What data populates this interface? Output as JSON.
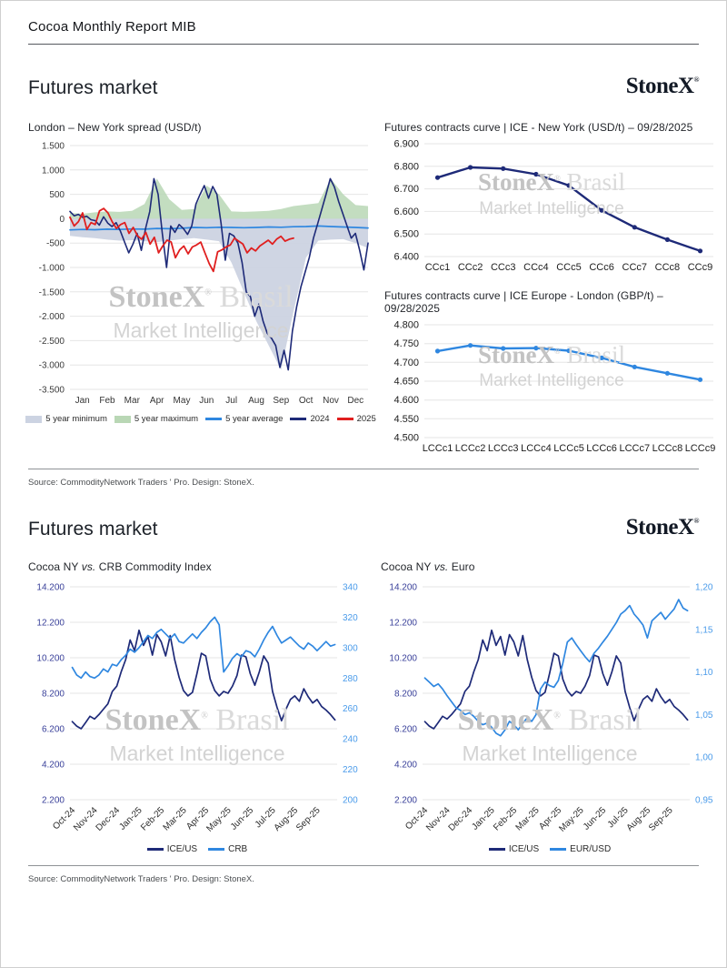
{
  "page": {
    "header_title": "Cocoa Monthly Report MIB"
  },
  "brand": {
    "name": "StoneX",
    "mark": "®"
  },
  "watermark": {
    "brand": "StoneX",
    "mark": "®",
    "region": " Brasil",
    "sub": "Market Intelligence"
  },
  "section1": {
    "title": "Futures market",
    "source": "Source: CommodityNetwork Traders ' Pro. Design: StoneX."
  },
  "section2": {
    "title": "Futures market",
    "source": "Source: CommodityNetwork Traders ' Pro. Design: StoneX."
  },
  "colors": {
    "navy": "#1e2a78",
    "red": "#e01f1f",
    "blue": "#2f87e0",
    "green_band": "#b9d7b5",
    "gray_band": "#ccd3e2",
    "axis_navy_text": "#383f99",
    "axis_blue_text": "#4a9bea"
  },
  "chart_data": [
    {
      "type": "line",
      "title": "London – New York spread (USD/t)",
      "x_range": [
        0,
        12
      ],
      "y_range": [
        -3500,
        1500
      ],
      "y_tick_values": [
        1500,
        1000,
        500,
        0,
        -500,
        -1000,
        -1500,
        -2000,
        -2500,
        -3000,
        -3500
      ],
      "y_tick_labels": [
        "1.500",
        "1.000",
        "500",
        "0",
        "-500",
        "-1.000",
        "-1.500",
        "-2.000",
        "-2.500",
        "-3.000",
        "-3.500"
      ],
      "x_tick_values": [
        0.5,
        1.5,
        2.5,
        3.5,
        4.5,
        5.5,
        6.5,
        7.5,
        8.5,
        9.5,
        10.5,
        11.5
      ],
      "x_tick_labels": [
        "Jan",
        "Feb",
        "Mar",
        "Apr",
        "May",
        "Jun",
        "Jul",
        "Aug",
        "Sep",
        "Oct",
        "Nov",
        "Dec"
      ],
      "legend": [
        {
          "label": "5 year minimum",
          "color": "#ccd3e2",
          "type": "box"
        },
        {
          "label": "5 year maximum",
          "color": "#b9d7b5",
          "type": "box"
        },
        {
          "label": "5 year average",
          "color": "#2f87e0",
          "type": "line"
        },
        {
          "label": "2024",
          "color": "#1e2a78",
          "type": "line"
        },
        {
          "label": "2025",
          "color": "#e01f1f",
          "type": "line"
        }
      ],
      "series": [
        {
          "name": "5 year minimum",
          "kind": "band",
          "baseline": 0,
          "color": "#ccd3e2",
          "opacity": 0.95,
          "x_start": 0,
          "x_end": 12,
          "values": [
            -350,
            -380,
            -400,
            -430,
            -450,
            -440,
            -460,
            -480,
            -450,
            -420,
            -400,
            -430,
            -460,
            -900,
            -1500,
            -2100,
            -2600,
            -3100,
            -1900,
            -800,
            -450,
            -430,
            -420,
            -500,
            -600
          ]
        },
        {
          "name": "5 year maximum",
          "kind": "band",
          "baseline": 0,
          "color": "#b9d7b5",
          "opacity": 0.85,
          "x_start": 0,
          "x_end": 12,
          "values": [
            120,
            100,
            130,
            150,
            140,
            160,
            300,
            820,
            400,
            180,
            200,
            680,
            500,
            150,
            140,
            150,
            160,
            200,
            260,
            290,
            320,
            820,
            500,
            280,
            260
          ]
        },
        {
          "name": "5 year average",
          "kind": "line",
          "color": "#2f87e0",
          "width": 1.7,
          "x_start": 0,
          "x_end": 12,
          "values": [
            -230,
            -220,
            -225,
            -215,
            -220,
            -210,
            -215,
            -200,
            -205,
            -195,
            -180,
            -185,
            -175,
            -180,
            -185,
            -180,
            -170,
            -175,
            -165,
            -160,
            -150,
            -160,
            -170,
            -180,
            -190
          ]
        },
        {
          "name": "2024",
          "kind": "line",
          "color": "#1e2a78",
          "width": 1.6,
          "x_start": 0,
          "x_end": 12,
          "values": [
            150,
            60,
            90,
            30,
            50,
            -20,
            -40,
            -130,
            40,
            -90,
            -160,
            -80,
            -250,
            -480,
            -700,
            -520,
            -300,
            -650,
            -200,
            150,
            820,
            500,
            -300,
            -1000,
            -150,
            -280,
            -120,
            -200,
            -320,
            -150,
            300,
            500,
            680,
            420,
            660,
            500,
            -100,
            -850,
            -300,
            -350,
            -500,
            -900,
            -1500,
            -1600,
            -2000,
            -1750,
            -2100,
            -2350,
            -2450,
            -2600,
            -3050,
            -2700,
            -3100,
            -2300,
            -1800,
            -1400,
            -1100,
            -800,
            -400,
            -100,
            200,
            500,
            820,
            650,
            350,
            100,
            -150,
            -400,
            -300,
            -650,
            -1050,
            -500
          ]
        },
        {
          "name": "2025",
          "kind": "line",
          "color": "#e01f1f",
          "width": 1.8,
          "x_start": 0,
          "x_end": 9.0,
          "values": [
            30,
            -150,
            -60,
            120,
            -220,
            -80,
            -120,
            160,
            210,
            120,
            -60,
            -200,
            -120,
            -80,
            -300,
            -180,
            -350,
            -420,
            -280,
            -520,
            -380,
            -700,
            -560,
            -440,
            -480,
            -800,
            -640,
            -560,
            -720,
            -580,
            -540,
            -480,
            -700,
            -920,
            -1080,
            -680,
            -640,
            -580,
            -540,
            -400,
            -460,
            -520,
            -700,
            -600,
            -660,
            -560,
            -500,
            -440,
            -520,
            -420,
            -360,
            -460,
            -420,
            -400
          ]
        }
      ]
    },
    {
      "type": "line",
      "title": "Futures contracts curve | ICE - New York (USD/t) – 09/28/2025",
      "x_range": [
        -0.4,
        8.4
      ],
      "y_range": [
        6400,
        6900
      ],
      "y_tick_values": [
        6900,
        6800,
        6700,
        6600,
        6500,
        6400
      ],
      "y_tick_labels": [
        "6.900",
        "6.800",
        "6.700",
        "6.600",
        "6.500",
        "6.400"
      ],
      "x_tick_values": [
        0,
        1,
        2,
        3,
        4,
        5,
        6,
        7,
        8
      ],
      "x_tick_labels": [
        "CCc1",
        "CCc2",
        "CCc3",
        "CCc4",
        "CCc5",
        "CCc6",
        "CCc7",
        "CCc8",
        "CCc9"
      ],
      "series": [
        {
          "name": "NY futures curve",
          "kind": "line",
          "color": "#1e2a78",
          "width": 2.4,
          "markers": true,
          "x_start": 0,
          "x_end": 8,
          "values": [
            6750,
            6795,
            6790,
            6765,
            6715,
            6605,
            6530,
            6475,
            6425
          ]
        }
      ]
    },
    {
      "type": "line",
      "title": "Futures contracts curve | ICE Europe - London (GBP/t) – 09/28/2025",
      "x_range": [
        -0.4,
        8.4
      ],
      "y_range": [
        4500,
        4800
      ],
      "y_tick_values": [
        4800,
        4750,
        4700,
        4650,
        4600,
        4550,
        4500
      ],
      "y_tick_labels": [
        "4.800",
        "4.750",
        "4.700",
        "4.650",
        "4.600",
        "4.550",
        "4.500"
      ],
      "x_tick_values": [
        0,
        1,
        2,
        3,
        4,
        5,
        6,
        7,
        8
      ],
      "x_tick_labels": [
        "LCCc1",
        "LCCc2",
        "LCCc3",
        "LCCc4",
        "LCCc5",
        "LCCc6",
        "LCCc7",
        "LCCc8",
        "LCCc9"
      ],
      "series": [
        {
          "name": "London futures curve",
          "kind": "line",
          "color": "#2f87e0",
          "width": 2.4,
          "markers": true,
          "x_start": 0,
          "x_end": 8,
          "values": [
            4730,
            4745,
            4737,
            4738,
            4731,
            4712,
            4688,
            4671,
            4654
          ]
        }
      ]
    },
    {
      "type": "line",
      "title_parts": {
        "a": "Cocoa NY ",
        "vs": "vs.",
        "b": " CRB Commodity Index"
      },
      "x_range": [
        0,
        12
      ],
      "y_range": [
        2200,
        14200
      ],
      "y2_range": [
        200,
        340
      ],
      "y_tick_values": [
        14200,
        12200,
        10200,
        8200,
        6200,
        4200,
        2200
      ],
      "y_tick_labels": [
        "14.200",
        "12.200",
        "10.200",
        "8.200",
        "6.200",
        "4.200",
        "2.200"
      ],
      "y2_tick_values": [
        340,
        320,
        300,
        280,
        260,
        240,
        220,
        200
      ],
      "y2_tick_labels": [
        "340",
        "320",
        "300",
        "280",
        "260",
        "240",
        "220",
        "200"
      ],
      "x_tick_values": [
        0.25,
        1.25,
        2.25,
        3.25,
        4.25,
        5.25,
        6.25,
        7.25,
        8.25,
        9.25,
        10.25,
        11.25
      ],
      "x_tick_labels": [
        "Oct-24",
        "Nov-24",
        "Dec-24",
        "Jan-25",
        "Feb-25",
        "Mar-25",
        "Apr-25",
        "May-25",
        "Jun-25",
        "Jul-25",
        "Aug-25",
        "Sep-25"
      ],
      "legend": [
        {
          "label": "ICE/US",
          "color": "#1e2a78",
          "type": "line"
        },
        {
          "label": "CRB",
          "color": "#2f87e0",
          "type": "line"
        }
      ],
      "series": [
        {
          "name": "ICE/US",
          "kind": "line",
          "color": "#1e2a78",
          "width": 1.7,
          "x_start": 0.1,
          "x_end": 11.9,
          "values": [
            6600,
            6350,
            6200,
            6550,
            6900,
            6750,
            7000,
            7300,
            7600,
            8300,
            8600,
            9400,
            10100,
            11200,
            10600,
            11750,
            10900,
            11400,
            10350,
            11500,
            11100,
            10300,
            11450,
            10100,
            9100,
            8350,
            8050,
            8250,
            9300,
            10450,
            10300,
            9000,
            8350,
            8050,
            8300,
            8200,
            8600,
            9200,
            10350,
            10250,
            9300,
            8650,
            9400,
            10300,
            9900,
            8300,
            7400,
            6650,
            7300,
            7850,
            8050,
            7750,
            8450,
            8000,
            7650,
            7850,
            7450,
            7250,
            7000,
            6700
          ]
        },
        {
          "name": "CRB",
          "kind": "line",
          "color": "#2f87e0",
          "width": 1.7,
          "axis": "y2",
          "x_start": 0.1,
          "x_end": 11.9,
          "values": [
            287,
            282,
            280,
            284,
            281,
            280,
            282,
            286,
            284,
            289,
            288,
            292,
            295,
            299,
            297,
            300,
            304,
            308,
            306,
            310,
            312,
            309,
            306,
            309,
            304,
            303,
            306,
            309,
            306,
            310,
            313,
            317,
            320,
            315,
            284,
            288,
            293,
            296,
            294,
            298,
            297,
            294,
            299,
            305,
            310,
            314,
            308,
            303,
            305,
            307,
            304,
            301,
            299,
            303,
            301,
            298,
            301,
            304,
            301,
            302
          ]
        }
      ]
    },
    {
      "type": "line",
      "title_parts": {
        "a": "Cocoa NY ",
        "vs": "vs.",
        "b": " Euro"
      },
      "x_range": [
        0,
        12
      ],
      "y_range": [
        2200,
        14200
      ],
      "y2_range": [
        0.95,
        1.2
      ],
      "y_tick_values": [
        14200,
        12200,
        10200,
        8200,
        6200,
        4200,
        2200
      ],
      "y_tick_labels": [
        "14.200",
        "12.200",
        "10.200",
        "8.200",
        "6.200",
        "4.200",
        "2.200"
      ],
      "y2_tick_values": [
        1.2,
        1.15,
        1.1,
        1.05,
        1.0,
        0.95
      ],
      "y2_tick_labels": [
        "1,20",
        "1,15",
        "1,10",
        "1,05",
        "1,00",
        "0,95"
      ],
      "x_tick_values": [
        0.25,
        1.25,
        2.25,
        3.25,
        4.25,
        5.25,
        6.25,
        7.25,
        8.25,
        9.25,
        10.25,
        11.25
      ],
      "x_tick_labels": [
        "Oct-24",
        "Nov-24",
        "Dec-24",
        "Jan-25",
        "Feb-25",
        "Mar-25",
        "Apr-25",
        "May-25",
        "Jun-25",
        "Jul-25",
        "Aug-25",
        "Sep-25"
      ],
      "legend": [
        {
          "label": "ICE/US",
          "color": "#1e2a78",
          "type": "line"
        },
        {
          "label": "EUR/USD",
          "color": "#2f87e0",
          "type": "line"
        }
      ],
      "series": [
        {
          "name": "ICE/US",
          "kind": "line",
          "color": "#1e2a78",
          "width": 1.7,
          "x_start": 0.1,
          "x_end": 11.9,
          "values": [
            6600,
            6350,
            6200,
            6550,
            6900,
            6750,
            7000,
            7300,
            7600,
            8300,
            8600,
            9400,
            10100,
            11200,
            10600,
            11750,
            10900,
            11400,
            10350,
            11500,
            11100,
            10300,
            11450,
            10100,
            9100,
            8350,
            8050,
            8250,
            9300,
            10450,
            10300,
            9000,
            8350,
            8050,
            8300,
            8200,
            8600,
            9200,
            10350,
            10250,
            9300,
            8650,
            9400,
            10300,
            9900,
            8300,
            7400,
            6650,
            7300,
            7850,
            8050,
            7750,
            8450,
            8000,
            7650,
            7850,
            7450,
            7250,
            7000,
            6700
          ]
        },
        {
          "name": "EUR/USD",
          "kind": "line",
          "color": "#2f87e0",
          "width": 1.7,
          "axis": "y2",
          "x_start": 0.1,
          "x_end": 11.9,
          "values": [
            1.093,
            1.088,
            1.083,
            1.086,
            1.08,
            1.072,
            1.065,
            1.058,
            1.055,
            1.05,
            1.052,
            1.048,
            1.042,
            1.038,
            1.04,
            1.035,
            1.028,
            1.025,
            1.032,
            1.042,
            1.038,
            1.032,
            1.04,
            1.046,
            1.042,
            1.05,
            1.08,
            1.088,
            1.084,
            1.082,
            1.09,
            1.11,
            1.135,
            1.14,
            1.132,
            1.125,
            1.118,
            1.112,
            1.122,
            1.128,
            1.135,
            1.142,
            1.15,
            1.158,
            1.168,
            1.172,
            1.178,
            1.168,
            1.162,
            1.155,
            1.14,
            1.16,
            1.165,
            1.17,
            1.162,
            1.168,
            1.174,
            1.185,
            1.175,
            1.172
          ]
        }
      ]
    }
  ]
}
